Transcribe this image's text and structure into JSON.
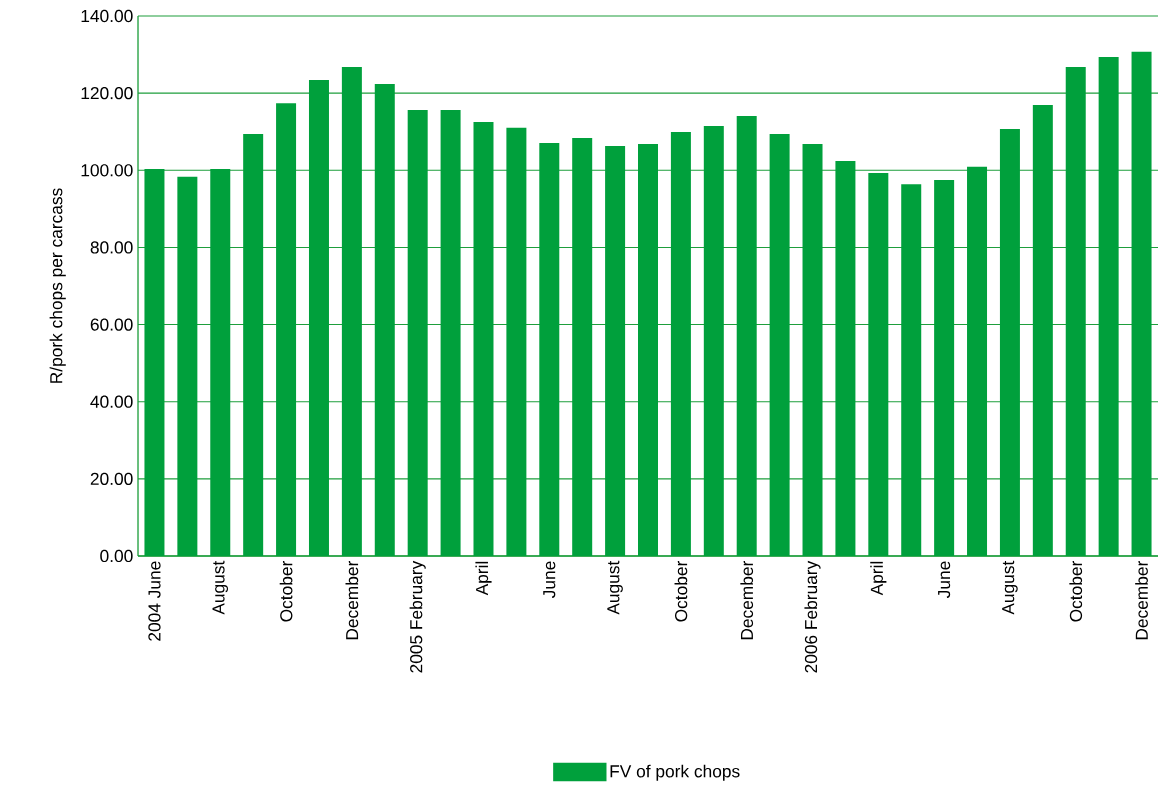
{
  "chart_data": {
    "type": "bar",
    "ylabel": "R/pork chops per carcass",
    "categories": [
      "2004  June",
      null,
      "August",
      null,
      "October",
      null,
      "December",
      null,
      "2005 February",
      null,
      "April",
      null,
      "June",
      null,
      "August",
      null,
      "October",
      null,
      "December",
      null,
      "2006 February",
      null,
      "April",
      null,
      "June",
      null,
      "August",
      null,
      "October",
      null,
      "December"
    ],
    "series": [
      {
        "name": "FV of pork chops",
        "color": "#00a03c",
        "values": [
          100.3,
          98.3,
          100.3,
          109.4,
          117.4,
          123.4,
          126.8,
          122.4,
          115.6,
          115.6,
          112.5,
          111.0,
          107.1,
          108.4,
          106.3,
          106.8,
          109.9,
          111.5,
          114.1,
          109.4,
          106.8,
          102.4,
          99.3,
          96.4,
          97.5,
          100.9,
          110.7,
          116.9,
          126.8,
          129.4,
          130.7
        ]
      }
    ],
    "ylim": [
      0,
      140
    ],
    "yticks": [
      {
        "value": 0,
        "label": "0.00"
      },
      {
        "value": 20,
        "label": "20.00"
      },
      {
        "value": 40,
        "label": "40.00"
      },
      {
        "value": 60,
        "label": "60.00"
      },
      {
        "value": 80,
        "label": "80.00"
      },
      {
        "value": 100,
        "label": "100.00"
      },
      {
        "value": 120,
        "label": "120.00"
      },
      {
        "value": 140,
        "label": "140.00"
      }
    ],
    "grid": "y",
    "legend": "bottom"
  }
}
